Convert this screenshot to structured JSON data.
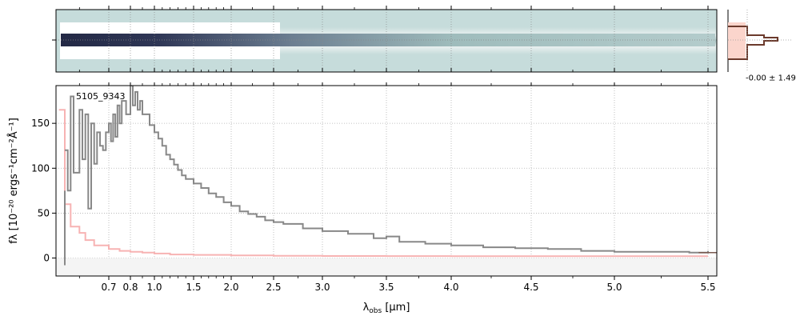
{
  "chart_data": [
    {
      "type": "heatmap",
      "panel": "2d-spectrum",
      "description_colormap": [
        "#c6dcdb",
        "#ffffff",
        "#232845"
      ],
      "bands": [
        {
          "x_end": 2.42,
          "rows_white": true
        },
        {
          "x_end": 5.5,
          "rows_white": false
        }
      ]
    },
    {
      "type": "area",
      "panel": "profile",
      "annotation": "-0.00 ± 1.49",
      "colors": {
        "fill": "#fbd5cc",
        "line": "#6b3a2c",
        "outline": "#e06030"
      }
    },
    {
      "type": "line",
      "panel": "1d-spectrum",
      "label": "5105_9343",
      "xlabel_main": "λ",
      "xlabel_sub": "obs",
      "xlabel_unit": " [μm]",
      "ylabel": "fλ [10⁻²⁰ ergs⁻¹cm⁻²Å⁻¹]",
      "xscale": "spectral-warp",
      "xlim": [
        0.52,
        5.53
      ],
      "ylim": [
        -20,
        192
      ],
      "xticks": [
        "0.7",
        "0.8",
        "1.0",
        "1.5",
        "2.0",
        "2.5",
        "3.0",
        "3.5",
        "4.0",
        "4.5",
        "5.0",
        "5.5"
      ],
      "yticks": [
        "0",
        "50",
        "100",
        "150"
      ],
      "grid": true,
      "colors": {
        "flux": "#888888",
        "error": "#f7b3b3",
        "model": "#7a5a50"
      },
      "series": [
        {
          "name": "flux",
          "x": [
            0.55,
            0.56,
            0.57,
            0.58,
            0.6,
            0.61,
            0.62,
            0.63,
            0.64,
            0.65,
            0.66,
            0.67,
            0.68,
            0.69,
            0.7,
            0.71,
            0.72,
            0.73,
            0.74,
            0.75,
            0.76,
            0.78,
            0.8,
            0.82,
            0.84,
            0.86,
            0.88,
            0.9,
            0.93,
            0.96,
            1.0,
            1.05,
            1.1,
            1.15,
            1.2,
            1.25,
            1.3,
            1.35,
            1.4,
            1.5,
            1.6,
            1.7,
            1.8,
            1.9,
            2.0,
            2.1,
            2.2,
            2.3,
            2.4,
            2.5,
            2.6,
            2.8,
            3.0,
            3.2,
            3.4,
            3.5,
            3.6,
            3.8,
            4.0,
            4.2,
            4.4,
            4.6,
            4.8,
            5.0,
            5.2,
            5.4,
            5.5
          ],
          "y": [
            120,
            75,
            180,
            95,
            165,
            110,
            160,
            55,
            150,
            105,
            140,
            125,
            120,
            140,
            150,
            130,
            160,
            135,
            170,
            150,
            175,
            160,
            192,
            170,
            185,
            165,
            175,
            160,
            160,
            148,
            140,
            133,
            125,
            115,
            110,
            104,
            98,
            92,
            88,
            83,
            78,
            72,
            68,
            62,
            58,
            52,
            49,
            46,
            42,
            40,
            38,
            33,
            30,
            27,
            22,
            24,
            18,
            16,
            14,
            12,
            11,
            10,
            8,
            7,
            7,
            6,
            8
          ]
        },
        {
          "name": "error",
          "x": [
            0.53,
            0.55,
            0.57,
            0.6,
            0.62,
            0.65,
            0.7,
            0.75,
            0.8,
            0.9,
            1.0,
            1.2,
            1.5,
            2.0,
            2.5,
            3.0,
            3.5,
            4.0,
            4.5,
            5.0,
            5.5
          ],
          "y": [
            165,
            60,
            35,
            28,
            20,
            14,
            10,
            8,
            7,
            6,
            5,
            4,
            3.5,
            3,
            2.5,
            2.3,
            2.2,
            2,
            2,
            2,
            2
          ]
        }
      ]
    }
  ]
}
